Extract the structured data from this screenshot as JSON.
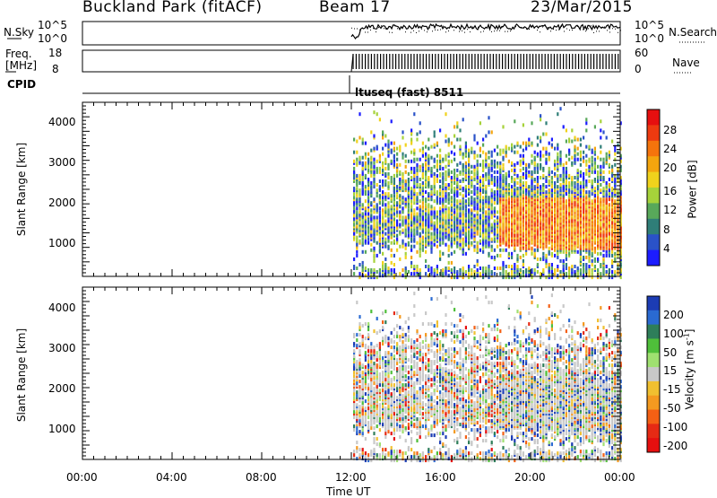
{
  "header": {
    "site": "Buckland Park (fitACF)",
    "beam": "Beam 17",
    "date": "23/Mar/2015"
  },
  "strip_labels": {
    "nsky": "N.Sky",
    "nsky_ticks": [
      "10^5",
      "10^0"
    ],
    "nsearch": "N.Search",
    "nsearch_ticks": [
      "10^5",
      "10^0"
    ],
    "freq_top": "Freq.",
    "freq_unit": "[MHz]",
    "freq_ticks": [
      "18",
      "8"
    ],
    "nave": "Nave",
    "nave_ticks": [
      "60",
      "0"
    ],
    "cpid": "CPID",
    "cpid_text": "ltuseq (fast) 8511"
  },
  "chart_data": [
    {
      "type": "heatmap",
      "name": "power",
      "xlabel": "Time UT",
      "ylabel": "Slant Range [km]",
      "x_ticks": [
        "00:00",
        "04:00",
        "08:00",
        "12:00",
        "16:00",
        "20:00",
        "00:00"
      ],
      "x_range_hours": [
        0,
        24
      ],
      "y_ticks": [
        1000,
        2000,
        3000,
        4000
      ],
      "y_range_km": [
        180,
        4500
      ],
      "colorbar_label": "Power [dB]",
      "colorbar_ticks": [
        "4",
        "8",
        "12",
        "16",
        "20",
        "24",
        "28"
      ],
      "colorbar_colors": [
        "#1c1cff",
        "#2a52c8",
        "#2f7e78",
        "#58a85a",
        "#a6d23a",
        "#f0d21c",
        "#f4a50e",
        "#f5740c",
        "#ee3a10",
        "#e60f0f"
      ],
      "data_start_hour": 12
    },
    {
      "type": "heatmap",
      "name": "velocity",
      "xlabel": "Time UT",
      "ylabel": "Slant Range [km]",
      "x_ticks": [
        "00:00",
        "04:00",
        "08:00",
        "12:00",
        "16:00",
        "20:00",
        "00:00"
      ],
      "x_range_hours": [
        0,
        24
      ],
      "y_ticks": [
        1000,
        2000,
        3000,
        4000
      ],
      "y_range_km": [
        180,
        4500
      ],
      "colorbar_label": "Velocity [m s",
      "colorbar_label_sup": "-1",
      "colorbar_label_end": "]",
      "colorbar_ticks": [
        "200",
        "100",
        "50",
        "15",
        "-15",
        "-50",
        "-100",
        "-200"
      ],
      "colorbar_colors": [
        "#1c3cb4",
        "#2a6ad2",
        "#2e7e5a",
        "#4fbf3a",
        "#9fe070",
        "#c8c8c8",
        "#f0c030",
        "#f49a20",
        "#f46014",
        "#e62a14",
        "#e60f0f"
      ],
      "data_start_hour": 12
    }
  ]
}
